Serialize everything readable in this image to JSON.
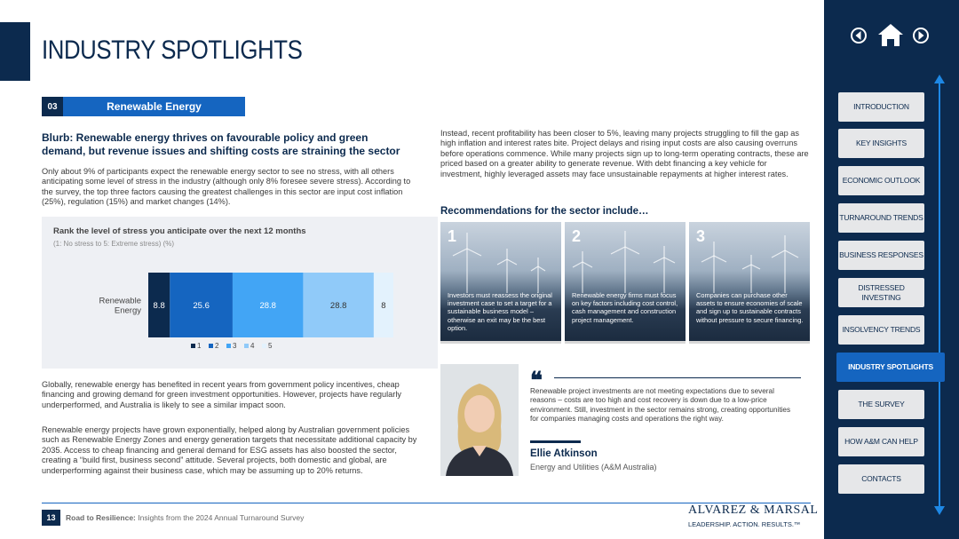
{
  "page_title": "INDUSTRY SPOTLIGHTS",
  "section": {
    "number": "03",
    "label": "Renewable Energy"
  },
  "blurb_title": "Blurb: Renewable energy thrives on favourable policy and green demand, but revenue issues and shifting costs are straining the sector",
  "para1": "Only about 9% of participants expect the renewable energy sector to see no stress, with all others anticipating some level of stress in the industry (although only 8% foresee severe stress). According to the survey, the top three factors causing the greatest challenges in this sector are input cost inflation (25%), regulation (15%) and market changes (14%).",
  "chart_data": {
    "type": "bar",
    "orientation": "horizontal-stacked-100",
    "title": "Rank the level of stress you anticipate over the next 12 months",
    "subtitle": "(1: No stress to 5: Extreme stress) (%)",
    "categories": [
      "Renewable Energy"
    ],
    "category_label": "Renewable\nEnergy",
    "series": [
      {
        "name": "1",
        "values": [
          8.8
        ],
        "color": "#0c2a4e"
      },
      {
        "name": "2",
        "values": [
          25.6
        ],
        "color": "#1565c0"
      },
      {
        "name": "3",
        "values": [
          28.8
        ],
        "color": "#42a5f5"
      },
      {
        "name": "4",
        "values": [
          28.8
        ],
        "color": "#90caf9"
      },
      {
        "name": "5",
        "values": [
          8
        ],
        "color": "#e3f2fd"
      }
    ],
    "data_labels": [
      "8.8",
      "25.6",
      "28.8",
      "28.8",
      "8"
    ],
    "legend": "bottom"
  },
  "para2": "Globally, renewable energy has benefited in recent years from government policy incentives, cheap financing and growing demand for green investment opportunities. However, projects have regularly underperformed, and Australia is likely to see a similar impact soon.",
  "para3": "Renewable energy projects have grown exponentially, helped along by Australian government policies such as Renewable Energy Zones and energy generation targets that necessitate additional capacity by 2035. Access to cheap financing and general demand for ESG assets has also boosted the sector, creating a “build first, business second” attitude. Several projects, both domestic and global, are underperforming against their business case, which may be assuming up to 20% returns.",
  "para4": "Instead, recent profitability has been closer to 5%, leaving many projects struggling to fill the gap as high inflation and interest rates bite. Project delays and rising input costs are also causing overruns before operations commence. While many projects sign up to long-term operating contracts, these are priced based on a greater ability to generate revenue. With debt financing a key vehicle for investment, highly leveraged assets may face unsustainable repayments at higher interest rates.",
  "recommendations_title": "Recommendations for the sector include…",
  "recommendations": [
    {
      "number": "1",
      "text": "Investors must reassess the original investment case to set a target for a sustainable business model – otherwise an exit may be the best option."
    },
    {
      "number": "2",
      "text": "Renewable energy firms must focus on key factors including cost control, cash management and construction project management."
    },
    {
      "number": "3",
      "text": "Companies can purchase other assets to ensure economies of scale and sign up to sustainable contracts without pressure to secure financing."
    }
  ],
  "quote": {
    "mark": "❝",
    "text": "Renewable project investments are not meeting expectations due to several reasons – costs are too high and cost recovery is down due to a low-price environment. Still, investment in the sector remains strong, creating opportunities for companies managing costs and operations the right way.",
    "name": "Ellie Atkinson",
    "role": "Energy and Utilities (A&M Australia)"
  },
  "footer": {
    "page_number": "13",
    "bold": "Road to Resilience:",
    "text": " Insights from the 2024 Annual Turnaround Survey",
    "logo_name": "ALVAREZ & MARSAL",
    "logo_tag": "LEADERSHIP. ACTION. RESULTS.™"
  },
  "nav": {
    "icons": [
      "prev-arrow-icon",
      "home-icon",
      "next-arrow-icon"
    ],
    "items": [
      {
        "label": "INTRODUCTION",
        "active": false
      },
      {
        "label": "KEY INSIGHTS",
        "active": false
      },
      {
        "label": "ECONOMIC OUTLOOK",
        "active": false
      },
      {
        "label": "TURNAROUND TRENDS",
        "active": false
      },
      {
        "label": "BUSINESS RESPONSES",
        "active": false
      },
      {
        "label": "DISTRESSED INVESTING",
        "active": false
      },
      {
        "label": "INSOLVENCY TRENDS",
        "active": false
      },
      {
        "label": "INDUSTRY SPOTLIGHTS",
        "active": true
      },
      {
        "label": "THE SURVEY",
        "active": false
      },
      {
        "label": "HOW A&M CAN HELP",
        "active": false
      },
      {
        "label": "CONTACTS",
        "active": false
      }
    ]
  },
  "colors": {
    "navy": "#0c2a4e",
    "blue": "#1565c0",
    "light_grey": "#eef0f4"
  }
}
